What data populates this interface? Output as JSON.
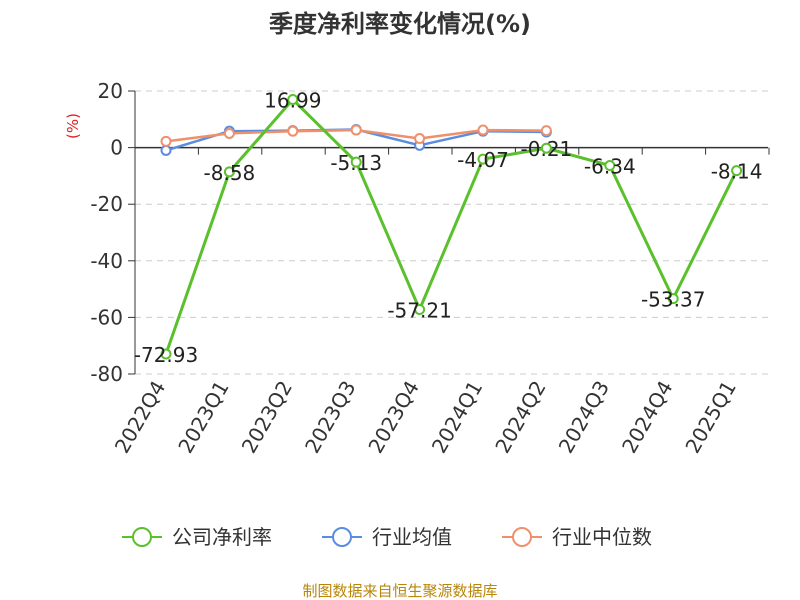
{
  "chart_data": {
    "type": "line",
    "title": "季度净利率变化情况(%)",
    "ylabel": "(%)",
    "categories": [
      "2022Q4",
      "2023Q1",
      "2023Q2",
      "2023Q3",
      "2023Q4",
      "2024Q1",
      "2024Q2",
      "2024Q3",
      "2024Q4",
      "2025Q1"
    ],
    "ylim": [
      -80,
      20
    ],
    "yticks": [
      20,
      0,
      -20,
      -40,
      -60,
      -80
    ],
    "grid": true,
    "legend_position": "bottom",
    "series": [
      {
        "name": "公司净利率",
        "color": "#5ac02c",
        "values": [
          -72.93,
          -8.58,
          16.99,
          -5.13,
          -57.21,
          -4.07,
          -0.21,
          -6.34,
          -53.37,
          -8.14
        ],
        "labels": [
          "-72.93",
          "-8.58",
          "16.99",
          "-5.13",
          "-57.21",
          "-4.07",
          "-0.21",
          "-6.34",
          "-53.37",
          "-8.14"
        ]
      },
      {
        "name": "行业均值",
        "color": "#5b8ce0",
        "values": [
          -1.0,
          5.8,
          6.0,
          6.4,
          0.8,
          5.8,
          5.5,
          null,
          null,
          null
        ]
      },
      {
        "name": "行业中位数",
        "color": "#f0906a",
        "values": [
          2.2,
          5.0,
          5.8,
          6.2,
          3.2,
          6.2,
          6.0,
          null,
          null,
          null
        ]
      }
    ]
  },
  "footer": {
    "source": "制图数据来自恒生聚源数据库"
  }
}
